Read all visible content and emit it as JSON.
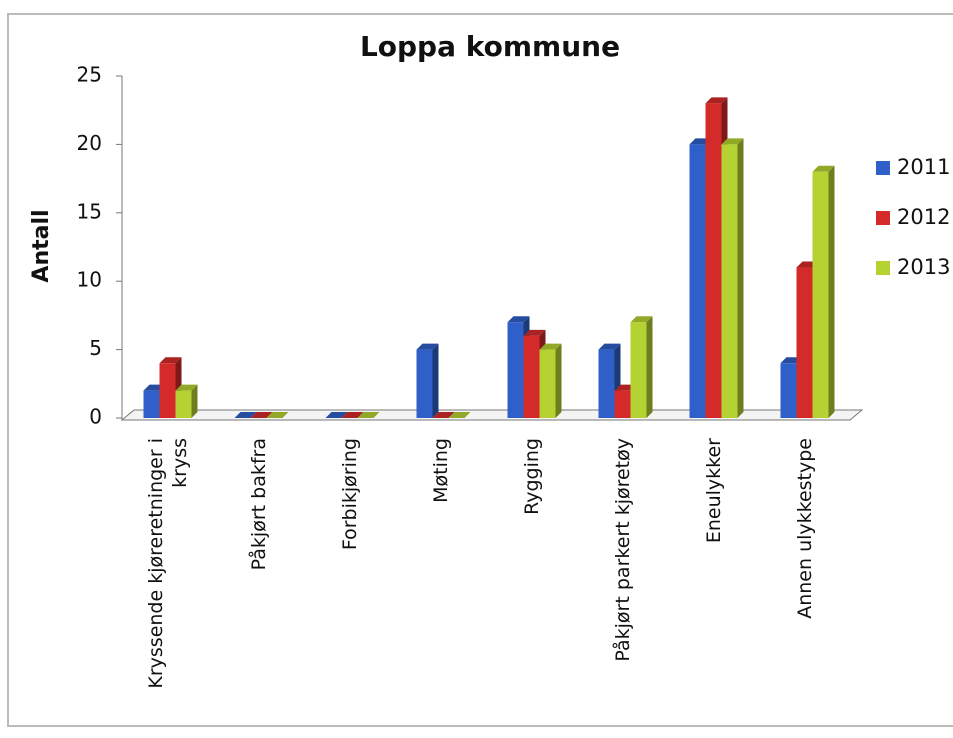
{
  "chart_data": {
    "type": "bar3d",
    "title": "Loppa kommune",
    "y_label": "Antall",
    "categories": [
      "Kryssende kjøreretninger i kryss",
      "Påkjørt bakfra",
      "Forbikjøring",
      "Møting",
      "Rygging",
      "Påkjørt parkert kjøretøy",
      "Eneulykker",
      "Annen ulykkestype"
    ],
    "series": [
      {
        "name": "2011",
        "color": "#2f5fc8",
        "values": [
          2,
          0,
          0,
          5,
          7,
          5,
          20,
          4
        ]
      },
      {
        "name": "2012",
        "color": "#d42a2a",
        "values": [
          4,
          0,
          0,
          0,
          6,
          2,
          23,
          11
        ]
      },
      {
        "name": "2013",
        "color": "#b5d233",
        "values": [
          2,
          0,
          0,
          0,
          5,
          7,
          20,
          18
        ]
      }
    ],
    "ylim": [
      0,
      25
    ],
    "yticks": [
      0,
      5,
      10,
      15,
      20,
      25
    ],
    "legend": "right"
  }
}
